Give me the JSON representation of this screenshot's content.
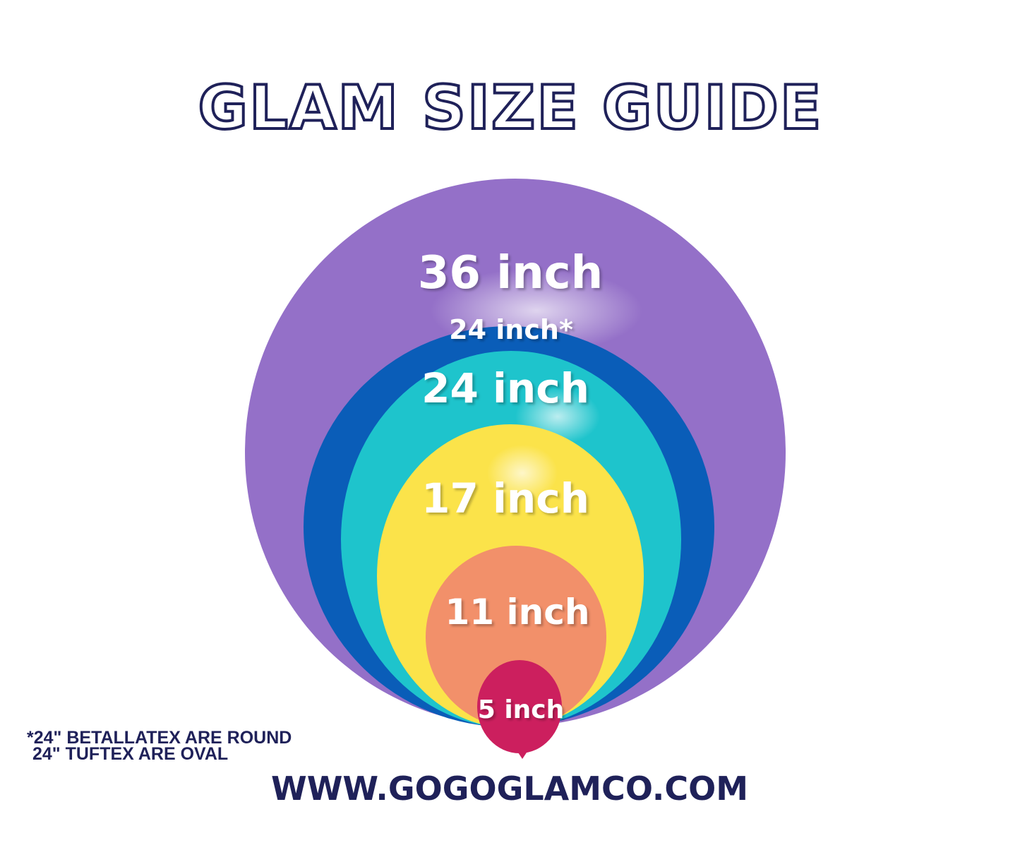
{
  "title": "GLAM SIZE GUIDE",
  "balloons": [
    {
      "label": "36 inch",
      "color": "#9470c8"
    },
    {
      "label": "24 inch*",
      "color": "#0a5db8"
    },
    {
      "label": "24 inch",
      "color": "#1ec4cc"
    },
    {
      "label": "17 inch",
      "color": "#fbe34a"
    },
    {
      "label": "11 inch",
      "color": "#f2906a"
    },
    {
      "label": "5 inch",
      "color": "#cc1f5e"
    }
  ],
  "footnote": {
    "line1": "*24\" BETALLATEX ARE ROUND",
    "line2": "24\" TUFTEX ARE OVAL"
  },
  "website": "WWW.GOGOGLAMCO.COM",
  "colors": {
    "navy": "#1f2159"
  }
}
